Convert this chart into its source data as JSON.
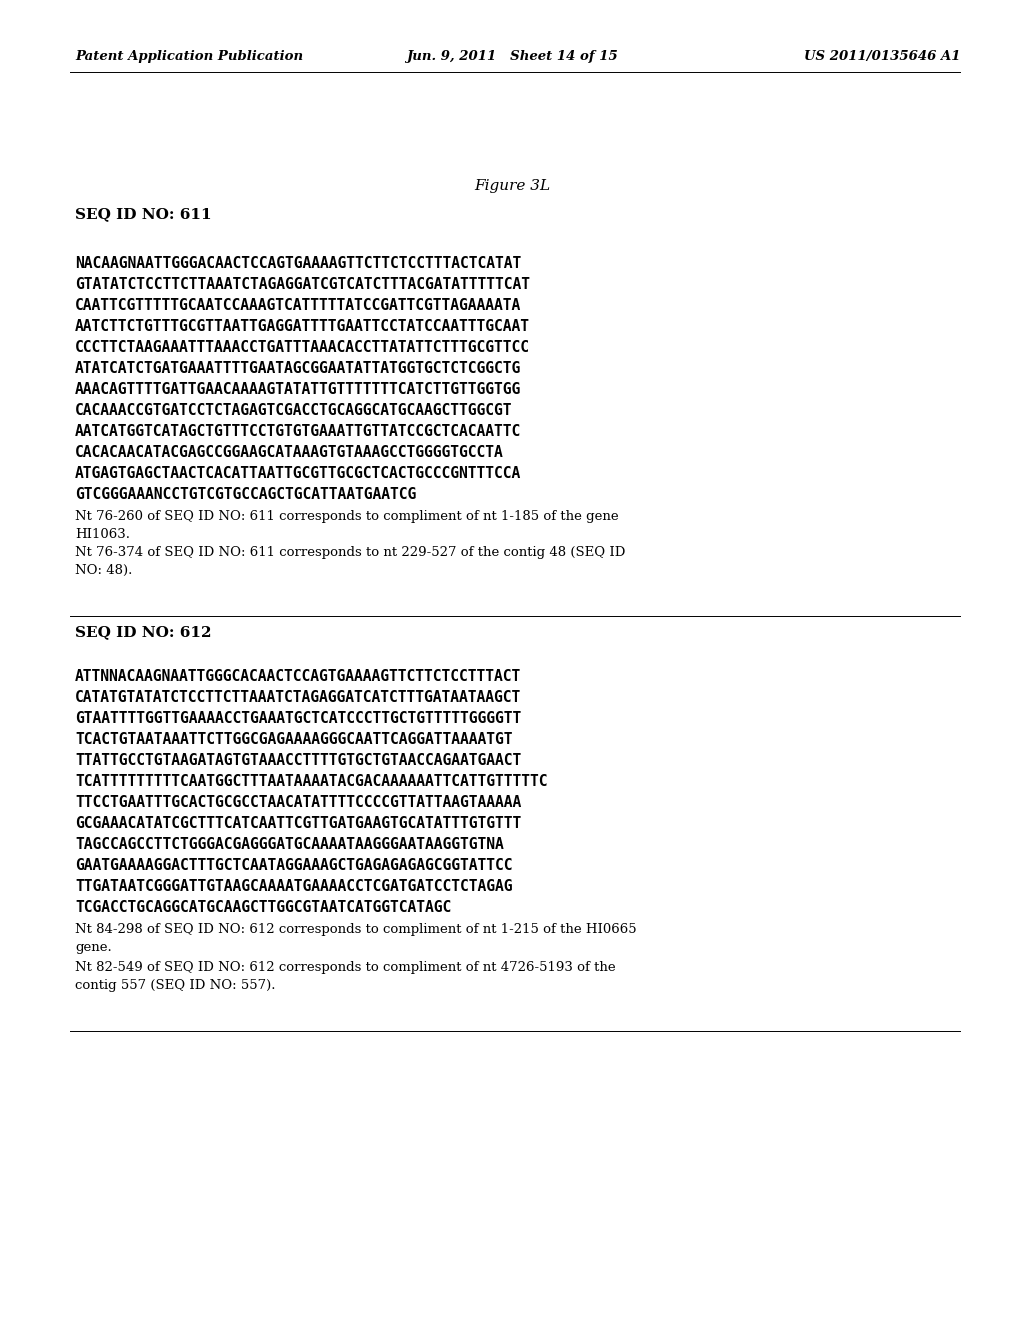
{
  "header_left": "Patent Application Publication",
  "header_center": "Jun. 9, 2011   Sheet 14 of 15",
  "header_right": "US 2011/0135646 A1",
  "figure_title": "Figure 3L",
  "section1_id": "SEQ ID NO: 611",
  "section1_seq": [
    "NACAAGNAATTGGGACAACTCCAGTGAAAAGTTCTTCTCCTTTACTCATAT",
    "GTATATCTCCTTCTTAAATCTAGAGGATCGTCATCTTTACGATATTTTTCAT",
    "CAATTCGTTTTTGCAATCCAAAGTCATTTTTATCCGATTCGTTAGAAAATA",
    "AATCTTCTGTTTGCGTTAATTGAGGATTTTGAATTCCTATCCAATTTGCAAT",
    "CCCTTCTAAGAAATTTAAACCTGATTTAAACACCTTATATTCTTTGCGTTCC",
    "ATATCATCTGATGAAATTTTGAATAGCGGAATATTATGGTGCTCTCGGCTG",
    "AAACAGTTTTGATTGAACAAAAGTATATTGTTTTTTTCATCTTGTTGGTGG",
    "CACAAACCGTGATCCTCTAGAGTCGACCTGCAGGCATGCAAGCTTGGCGT",
    "AATCATGGTCATAGCTGTTTCCTGTGTGAAATTGTTATCCGCTCACAATTC",
    "CACACAACATACGAGCCGGAAGCATAAAGTGTAAAGCCTGGGGTGCCTA",
    "ATGAGTGAGCTAACTCACATTAATTGCGTTGCGCTCACTGCCCGNTTTCCA",
    "GTCGGGAAANCCTGTCGTGCCAGCTGCATTAATGAATCG"
  ],
  "section1_note1": "Nt 76-260 of SEQ ID NO: 611 corresponds to compliment of nt 1-185 of the gene\nHI1063.",
  "section1_note2": "Nt 76-374 of SEQ ID NO: 611 corresponds to nt 229-527 of the contig 48 (SEQ ID\nNO: 48).",
  "section2_id": "SEQ ID NO: 612",
  "section2_seq": [
    "ATTNNACAAGNAATTGGGCACAACTCCAGTGAAAAGTTCTTCTCCTTTACT",
    "CATATGTATATCTCCTTCTTAAATCTAGAGGATCATCTTTGATAATAAGCT",
    "GTAATTTTGGTTGAAAACCTGAAATGCTCATCCCTTGCTGTTTTTGGGGTT",
    "TCACTGTAATAAATTCTTGGCGAGAAAAGGGCAATTCAGGATTAAAATGT",
    "TTATTGCCTGTAAGATAGTGTAAACCTTTTGTGCTGTAACCAGAATGAACT",
    "TCATTTTTTTTTCAATGGCTTTAATAAAATACGACAAAAAATTCATTGTTTTTC",
    "TTCCTGAATTTGCACTGCGCCTAACATATTTTCCCCGTTATTAAGTAAAAA",
    "GCGAAACATATCGCTTTCATCAATTCGTTGATGAAGTGCATATTTGTGTTT",
    "TAGCCAGCCTTCTGGGACGAGGGATGCAAAATAAGGGAATAAGGTGTNA",
    "GAATGAAAAGGACTTTGCTCAATAGGAAAGCTGAGAGAGAGCGGTATTCC",
    "TTGATAATCGGGATTGTAAGCAAAATGAAAACCTCGATGATCCTCTAGAG",
    "TCGACCTGCAGGCATGCAAGCTTGGCGTAATCATGGTCATAGC"
  ],
  "section2_note1": "Nt 84-298 of SEQ ID NO: 612 corresponds to compliment of nt 1-215 of the HI0665\ngene.",
  "section2_note2": "Nt 82-549 of SEQ ID NO: 612 corresponds to compliment of nt 4726-5193 of the\ncontig 557 (SEQ ID NO: 557).",
  "bg_color": "#ffffff",
  "text_color": "#000000",
  "header_font_size": 9.5,
  "seq_font_size": 10.5,
  "note_font_size": 9.5,
  "id_font_size": 11.0,
  "title_font_size": 11.0
}
